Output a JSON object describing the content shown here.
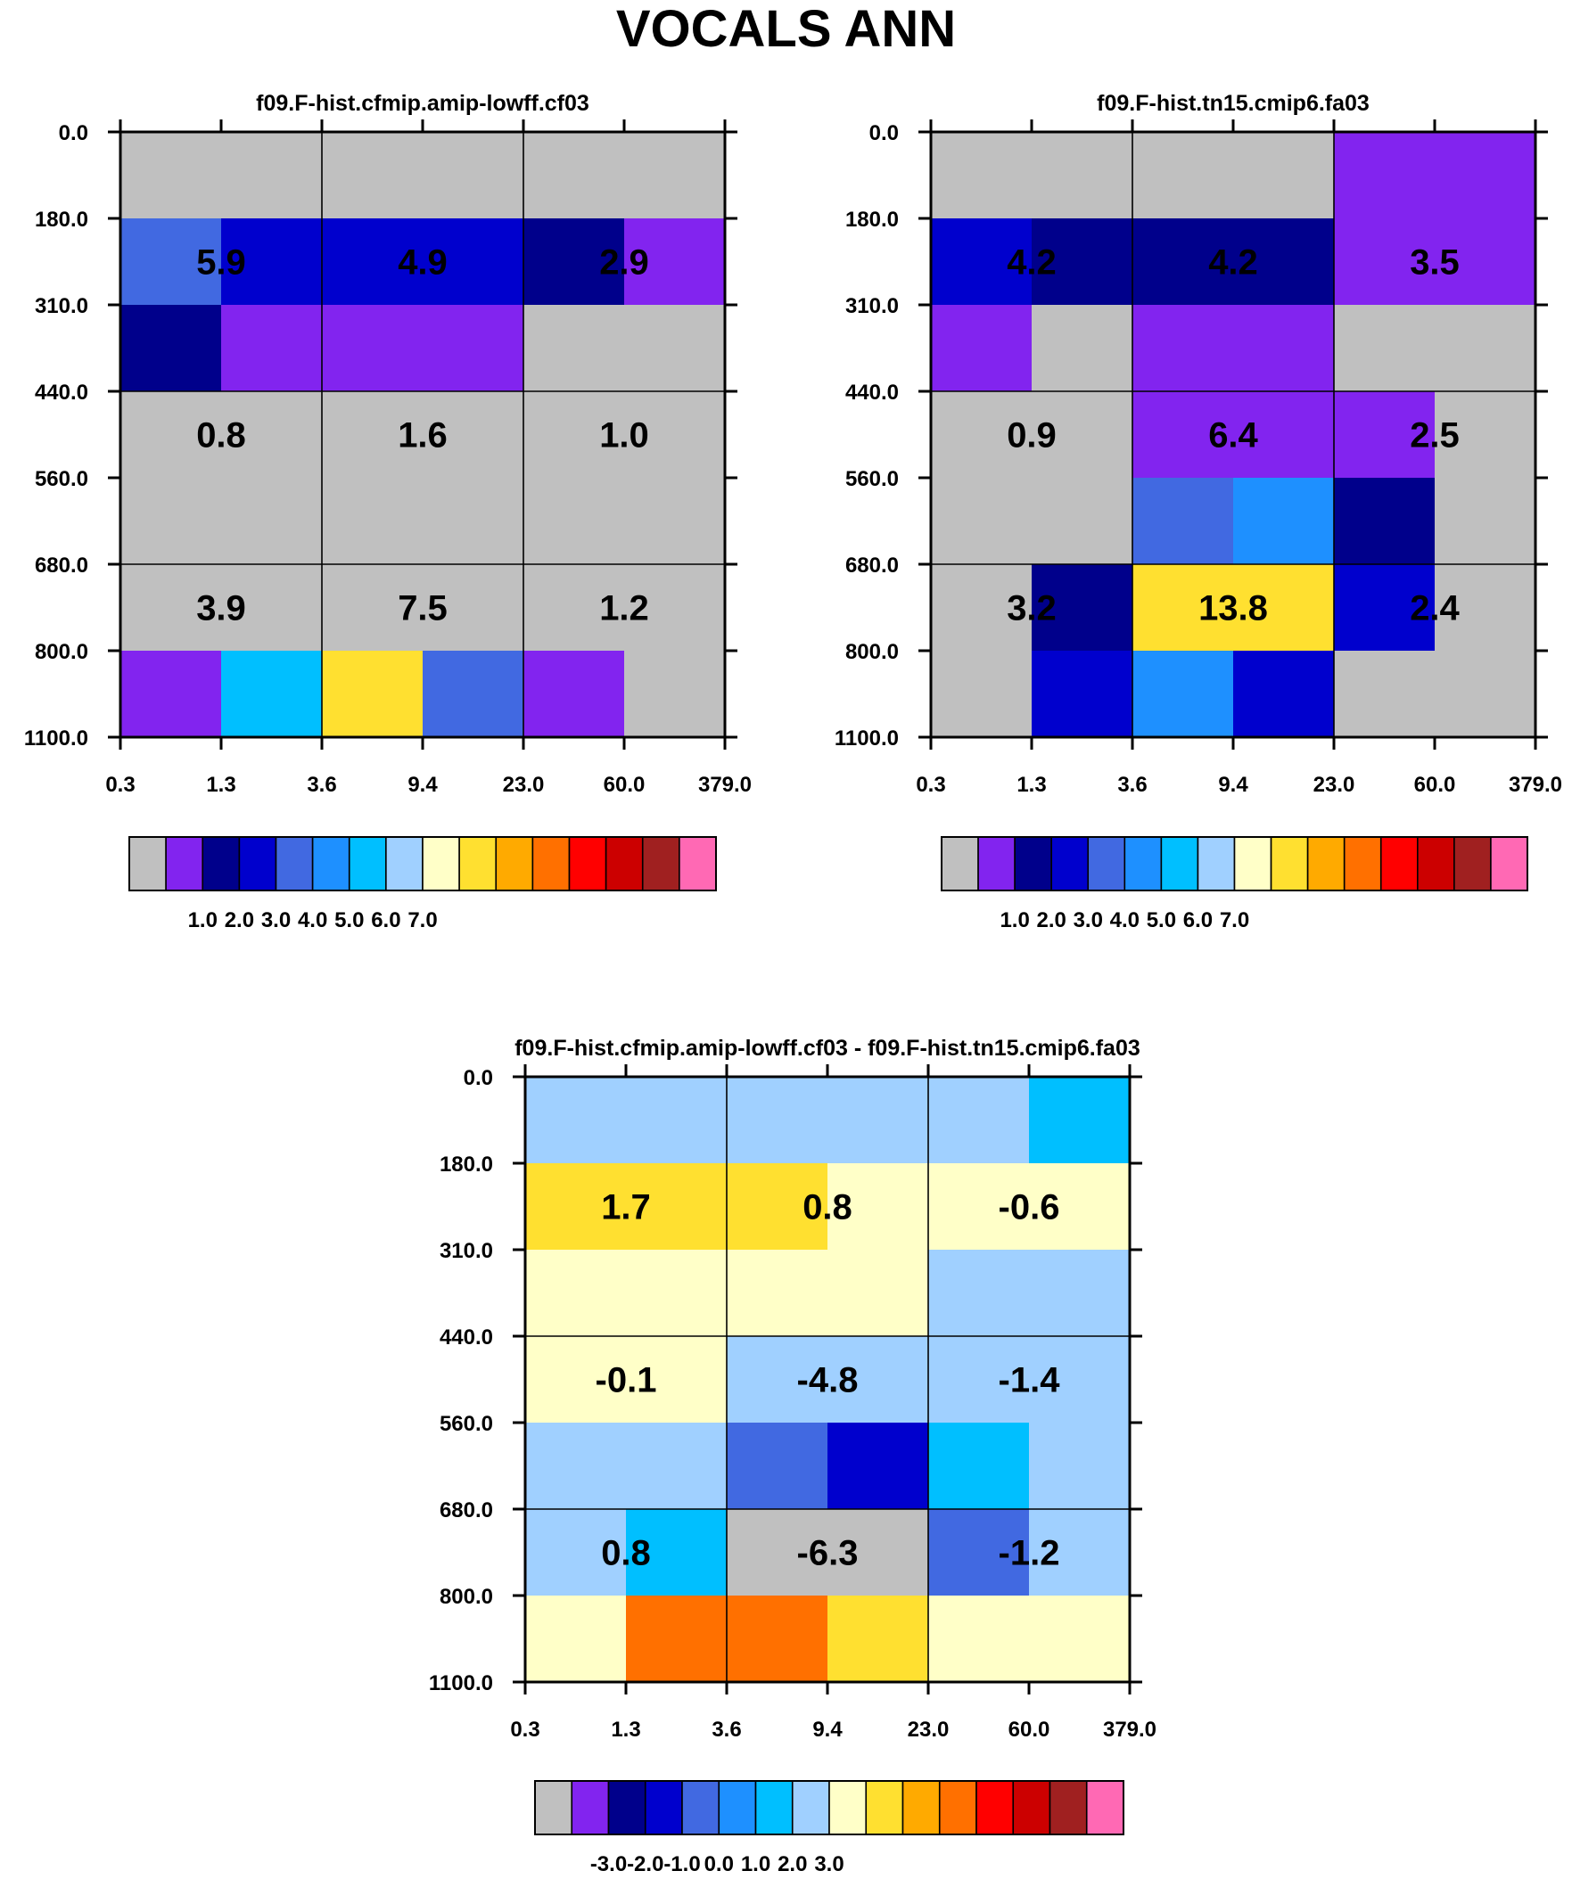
{
  "figure": {
    "title": "VOCALS ANN"
  },
  "palette": [
    "#c0c0c0",
    "#8224ef",
    "#00008b",
    "#0000cd",
    "#4169e1",
    "#1e90ff",
    "#00bfff",
    "#a0d0ff",
    "#ffffc8",
    "#ffe030",
    "#ffaa00",
    "#ff7000",
    "#ff0000",
    "#cc0000",
    "#a02020",
    "#ff69b4"
  ],
  "chart_data": [
    {
      "type": "heatmap",
      "title": "f09.F-hist.cfmip.amip-lowff.cf03",
      "x_tick_labels": [
        "0.3",
        "1.3",
        "3.6",
        "9.4",
        "23.0",
        "60.0",
        "379.0"
      ],
      "y_tick_labels": [
        "0.0",
        "180.0",
        "310.0",
        "440.0",
        "560.0",
        "680.0",
        "800.0",
        "1100.0"
      ],
      "cells": [
        [
          0,
          0,
          0,
          0,
          0,
          0
        ],
        [
          4,
          3,
          3,
          3,
          2,
          1
        ],
        [
          2,
          1,
          1,
          1,
          0,
          0
        ],
        [
          0,
          0,
          0,
          0,
          0,
          0
        ],
        [
          0,
          0,
          0,
          0,
          0,
          0
        ],
        [
          0,
          0,
          0,
          0,
          0,
          0
        ],
        [
          1,
          6,
          9,
          4,
          1,
          0
        ]
      ],
      "values": [
        [
          "5.9",
          "4.9",
          "2.9"
        ],
        [
          "0.8",
          "1.6",
          "1.0"
        ],
        [
          "3.9",
          "7.5",
          "1.2"
        ]
      ],
      "colorbar": {
        "labels": [
          "1.0",
          "2.0",
          "3.0",
          "4.0",
          "5.0",
          "6.0",
          "7.0"
        ]
      }
    },
    {
      "type": "heatmap",
      "title": "f09.F-hist.tn15.cmip6.fa03",
      "x_tick_labels": [
        "0.3",
        "1.3",
        "3.6",
        "9.4",
        "23.0",
        "60.0",
        "379.0"
      ],
      "y_tick_labels": [
        "0.0",
        "180.0",
        "310.0",
        "440.0",
        "560.0",
        "680.0",
        "800.0",
        "1100.0"
      ],
      "cells": [
        [
          0,
          0,
          0,
          0,
          1,
          1
        ],
        [
          3,
          2,
          2,
          2,
          1,
          1
        ],
        [
          1,
          0,
          1,
          1,
          0,
          0
        ],
        [
          0,
          0,
          1,
          1,
          1,
          0
        ],
        [
          0,
          0,
          4,
          5,
          2,
          0
        ],
        [
          0,
          2,
          9,
          9,
          3,
          0
        ],
        [
          0,
          3,
          5,
          3,
          0,
          0
        ]
      ],
      "values": [
        [
          "4.2",
          "4.2",
          "3.5"
        ],
        [
          "0.9",
          "6.4",
          "2.5"
        ],
        [
          "3.2",
          "13.8",
          "2.4"
        ]
      ],
      "colorbar": {
        "labels": [
          "1.0",
          "2.0",
          "3.0",
          "4.0",
          "5.0",
          "6.0",
          "7.0"
        ]
      }
    },
    {
      "type": "heatmap",
      "title": "f09.F-hist.cfmip.amip-lowff.cf03 - f09.F-hist.tn15.cmip6.fa03",
      "x_tick_labels": [
        "0.3",
        "1.3",
        "3.6",
        "9.4",
        "23.0",
        "60.0",
        "379.0"
      ],
      "y_tick_labels": [
        "0.0",
        "180.0",
        "310.0",
        "440.0",
        "560.0",
        "680.0",
        "800.0",
        "1100.0"
      ],
      "cells": [
        [
          7,
          7,
          7,
          7,
          7,
          6
        ],
        [
          9,
          9,
          9,
          8,
          8,
          8
        ],
        [
          8,
          8,
          8,
          8,
          7,
          7
        ],
        [
          8,
          8,
          7,
          7,
          7,
          7
        ],
        [
          7,
          7,
          4,
          3,
          6,
          7
        ],
        [
          7,
          6,
          0,
          0,
          4,
          7
        ],
        [
          8,
          11,
          11,
          9,
          8,
          8
        ]
      ],
      "values": [
        [
          "1.7",
          "0.8",
          "-0.6"
        ],
        [
          "-0.1",
          "-4.8",
          "-1.4"
        ],
        [
          "0.8",
          "-6.3",
          "-1.2"
        ]
      ],
      "colorbar": {
        "labels": [
          "-3.0",
          "-2.0",
          "-1.0",
          "0.0",
          "1.0",
          "2.0",
          "3.0"
        ]
      }
    }
  ]
}
